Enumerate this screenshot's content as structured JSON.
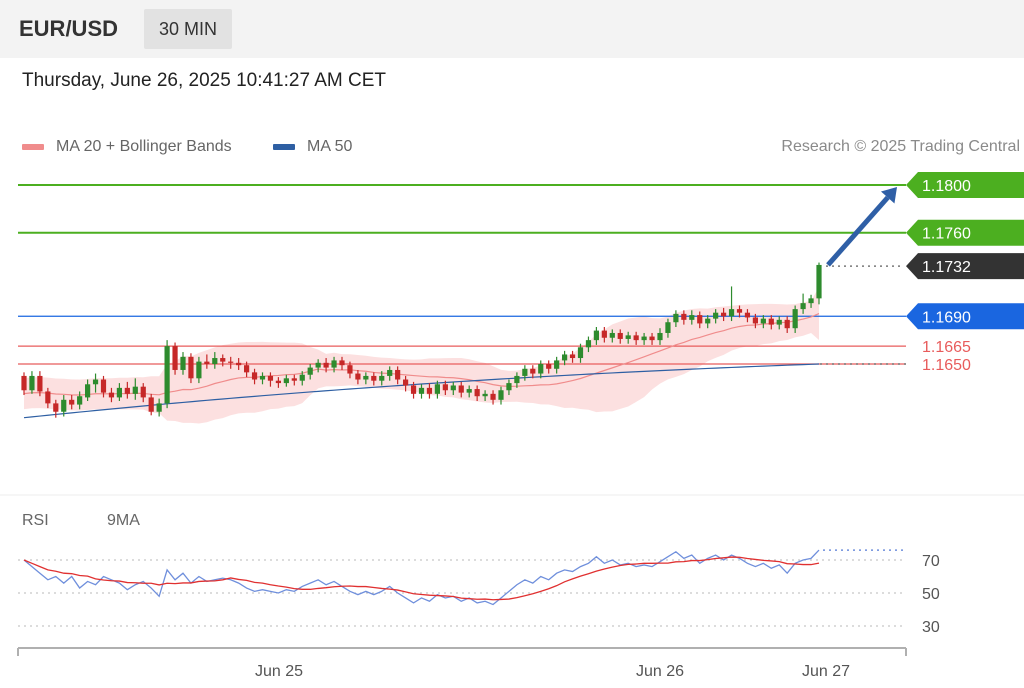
{
  "header": {
    "symbol": "EUR/USD",
    "timeframe": "30 MIN"
  },
  "timestamp": "Thursday, June 26, 2025 10:41:27 AM CET",
  "legend": {
    "ma20": {
      "label": "MA 20 + Bollinger Bands",
      "color": "#f08c8c"
    },
    "ma50": {
      "label": "MA 50",
      "color": "#2e5fa3"
    }
  },
  "copyright": "Research © 2025 Trading Central",
  "rsi_legend": {
    "rsi": {
      "label": "RSI",
      "color": "#6f8fdc"
    },
    "ma9": {
      "label": "9MA",
      "color": "#e03030"
    }
  },
  "colors": {
    "up": "#2e8b2e",
    "down": "#c62828",
    "resistance": "#4caf20",
    "pivot": "#1a66e0",
    "support": "#e85c5c",
    "current": "#333333",
    "band": "#fbd6d6",
    "arrow": "#2f5fa6"
  },
  "chart_data": [
    {
      "type": "candlestick",
      "title": "EUR/USD",
      "x_ticks": [
        "Jun 25",
        "Jun 26",
        "Jun 27"
      ],
      "levels": [
        {
          "value": 1.18,
          "label": "1.1800",
          "kind": "resistance"
        },
        {
          "value": 1.176,
          "label": "1.1760",
          "kind": "resistance"
        },
        {
          "value": 1.1732,
          "label": "1.1732",
          "kind": "current"
        },
        {
          "value": 1.169,
          "label": "1.1690",
          "kind": "pivot"
        },
        {
          "value": 1.1665,
          "label": "1.1665",
          "kind": "support"
        },
        {
          "value": 1.165,
          "label": "1.1650",
          "kind": "support"
        }
      ],
      "target_arrow": {
        "from": 1.1733,
        "to": 1.18
      },
      "candles": [
        [
          1.164,
          1.1628,
          1.1643,
          1.1624
        ],
        [
          1.1628,
          1.164,
          1.1644,
          1.1625
        ],
        [
          1.164,
          1.1627,
          1.1644,
          1.1623
        ],
        [
          1.1627,
          1.1617,
          1.163,
          1.1613
        ],
        [
          1.1617,
          1.161,
          1.162,
          1.1605
        ],
        [
          1.161,
          1.162,
          1.1624,
          1.1606
        ],
        [
          1.162,
          1.1616,
          1.1624,
          1.1612
        ],
        [
          1.1616,
          1.1623,
          1.1627,
          1.1612
        ],
        [
          1.1622,
          1.1633,
          1.1637,
          1.1619
        ],
        [
          1.1633,
          1.1637,
          1.1642,
          1.1626
        ],
        [
          1.1637,
          1.1626,
          1.164,
          1.1622
        ],
        [
          1.1626,
          1.1622,
          1.163,
          1.1618
        ],
        [
          1.1622,
          1.163,
          1.1634,
          1.1619
        ],
        [
          1.163,
          1.1625,
          1.1635,
          1.1621
        ],
        [
          1.1625,
          1.1631,
          1.1638,
          1.162
        ],
        [
          1.1631,
          1.1622,
          1.1634,
          1.1618
        ],
        [
          1.1622,
          1.161,
          1.1625,
          1.1607
        ],
        [
          1.161,
          1.1617,
          1.1621,
          1.1606
        ],
        [
          1.1617,
          1.1665,
          1.167,
          1.1613
        ],
        [
          1.1665,
          1.1645,
          1.1668,
          1.1641
        ],
        [
          1.1645,
          1.1656,
          1.166,
          1.1641
        ],
        [
          1.1656,
          1.1638,
          1.1659,
          1.1634
        ],
        [
          1.1638,
          1.1652,
          1.1656,
          1.1634
        ],
        [
          1.1652,
          1.165,
          1.1658,
          1.1646
        ],
        [
          1.165,
          1.1655,
          1.166,
          1.1646
        ],
        [
          1.1655,
          1.1652,
          1.1658,
          1.1648
        ],
        [
          1.1652,
          1.1651,
          1.1656,
          1.1646
        ],
        [
          1.1651,
          1.1649,
          1.1655,
          1.1645
        ],
        [
          1.1649,
          1.1643,
          1.1652,
          1.1639
        ],
        [
          1.1643,
          1.1637,
          1.1646,
          1.1633
        ],
        [
          1.1637,
          1.164,
          1.1643,
          1.1633
        ],
        [
          1.164,
          1.1636,
          1.1643,
          1.1631
        ],
        [
          1.1636,
          1.1634,
          1.1639,
          1.163
        ],
        [
          1.1634,
          1.1638,
          1.1641,
          1.1631
        ],
        [
          1.1638,
          1.1636,
          1.1641,
          1.1632
        ],
        [
          1.1636,
          1.1641,
          1.1644,
          1.1632
        ],
        [
          1.1641,
          1.1647,
          1.165,
          1.1637
        ],
        [
          1.1647,
          1.1651,
          1.1654,
          1.1643
        ],
        [
          1.1651,
          1.1647,
          1.1655,
          1.1643
        ],
        [
          1.1647,
          1.1653,
          1.1656,
          1.1643
        ],
        [
          1.1653,
          1.1649,
          1.1656,
          1.1645
        ],
        [
          1.1649,
          1.1642,
          1.1652,
          1.1638
        ],
        [
          1.1642,
          1.1637,
          1.1645,
          1.1633
        ],
        [
          1.1637,
          1.164,
          1.1643,
          1.1633
        ],
        [
          1.164,
          1.1636,
          1.1643,
          1.1632
        ],
        [
          1.1636,
          1.164,
          1.1644,
          1.1632
        ],
        [
          1.164,
          1.1645,
          1.1648,
          1.1636
        ],
        [
          1.1645,
          1.1637,
          1.1648,
          1.1633
        ],
        [
          1.1637,
          1.1632,
          1.164,
          1.1627
        ],
        [
          1.1632,
          1.1625,
          1.1635,
          1.1621
        ],
        [
          1.1625,
          1.163,
          1.1633,
          1.1621
        ],
        [
          1.163,
          1.1625,
          1.1634,
          1.1621
        ],
        [
          1.1625,
          1.1633,
          1.1636,
          1.1621
        ],
        [
          1.1633,
          1.1628,
          1.1636,
          1.1624
        ],
        [
          1.1628,
          1.1632,
          1.1635,
          1.1624
        ],
        [
          1.1632,
          1.1626,
          1.1635,
          1.1622
        ],
        [
          1.1626,
          1.1629,
          1.1632,
          1.1622
        ],
        [
          1.1629,
          1.1623,
          1.1632,
          1.1619
        ],
        [
          1.1623,
          1.1625,
          1.1628,
          1.1619
        ],
        [
          1.1625,
          1.162,
          1.1628,
          1.1616
        ],
        [
          1.162,
          1.1628,
          1.1631,
          1.1616
        ],
        [
          1.1628,
          1.1634,
          1.1637,
          1.1624
        ],
        [
          1.1634,
          1.164,
          1.1643,
          1.163
        ],
        [
          1.164,
          1.1646,
          1.1649,
          1.1636
        ],
        [
          1.1646,
          1.1642,
          1.1649,
          1.1638
        ],
        [
          1.1642,
          1.165,
          1.1653,
          1.1638
        ],
        [
          1.165,
          1.1646,
          1.1653,
          1.1642
        ],
        [
          1.1646,
          1.1653,
          1.1656,
          1.1642
        ],
        [
          1.1653,
          1.1658,
          1.1661,
          1.1649
        ],
        [
          1.1658,
          1.1655,
          1.1661,
          1.1651
        ],
        [
          1.1655,
          1.1664,
          1.1667,
          1.1651
        ],
        [
          1.1664,
          1.167,
          1.1673,
          1.166
        ],
        [
          1.167,
          1.1678,
          1.1681,
          1.1666
        ],
        [
          1.1678,
          1.1672,
          1.1681,
          1.1668
        ],
        [
          1.1672,
          1.1676,
          1.1679,
          1.1668
        ],
        [
          1.1676,
          1.1671,
          1.1679,
          1.1667
        ],
        [
          1.1671,
          1.1674,
          1.1677,
          1.1667
        ],
        [
          1.1674,
          1.167,
          1.1677,
          1.1666
        ],
        [
          1.167,
          1.1673,
          1.1676,
          1.1666
        ],
        [
          1.1673,
          1.167,
          1.1676,
          1.1666
        ],
        [
          1.167,
          1.1676,
          1.168,
          1.1666
        ],
        [
          1.1676,
          1.1685,
          1.1688,
          1.1672
        ],
        [
          1.1685,
          1.1692,
          1.1695,
          1.1681
        ],
        [
          1.1692,
          1.1687,
          1.1695,
          1.1683
        ],
        [
          1.1687,
          1.1691,
          1.1695,
          1.1683
        ],
        [
          1.1691,
          1.1684,
          1.1694,
          1.168
        ],
        [
          1.1684,
          1.1688,
          1.1691,
          1.168
        ],
        [
          1.1688,
          1.1693,
          1.1696,
          1.1684
        ],
        [
          1.1693,
          1.169,
          1.1697,
          1.1686
        ],
        [
          1.169,
          1.1696,
          1.1715,
          1.1686
        ],
        [
          1.1696,
          1.1693,
          1.1699,
          1.1689
        ],
        [
          1.1693,
          1.1689,
          1.1696,
          1.1685
        ],
        [
          1.1689,
          1.1684,
          1.1692,
          1.168
        ],
        [
          1.1684,
          1.1688,
          1.1691,
          1.168
        ],
        [
          1.1688,
          1.1683,
          1.1691,
          1.1679
        ],
        [
          1.1683,
          1.1687,
          1.169,
          1.1679
        ],
        [
          1.1687,
          1.168,
          1.169,
          1.1676
        ],
        [
          1.168,
          1.1696,
          1.1699,
          1.1676
        ],
        [
          1.1696,
          1.1701,
          1.1709,
          1.1692
        ],
        [
          1.1701,
          1.1705,
          1.1708,
          1.1697
        ],
        [
          1.1705,
          1.1733,
          1.1735,
          1.17
        ]
      ],
      "ma20_start": 1.1625,
      "bb_width_start": 0.0013,
      "ma50": {
        "start": 1.1605,
        "end": 1.165
      }
    },
    {
      "type": "line",
      "title": "RSI",
      "ylim": [
        20,
        85
      ],
      "y_ticks": [
        70,
        50,
        30
      ],
      "series": [
        {
          "name": "RSI",
          "values": [
            70,
            66,
            62,
            58,
            60,
            56,
            60,
            53,
            57,
            55,
            60,
            58,
            56,
            52,
            55,
            57,
            53,
            48,
            64,
            58,
            62,
            56,
            60,
            57,
            58,
            59,
            58,
            56,
            53,
            51,
            52,
            51,
            50,
            52,
            51,
            54,
            56,
            58,
            55,
            57,
            54,
            51,
            49,
            51,
            49,
            51,
            54,
            50,
            47,
            44,
            47,
            45,
            49,
            47,
            48,
            45,
            47,
            44,
            45,
            43,
            47,
            51,
            55,
            58,
            56,
            60,
            58,
            62,
            64,
            63,
            66,
            68,
            72,
            68,
            70,
            67,
            68,
            66,
            67,
            66,
            69,
            72,
            75,
            71,
            73,
            68,
            71,
            73,
            70,
            73,
            71,
            68,
            66,
            68,
            65,
            67,
            62,
            68,
            70,
            71,
            76
          ]
        },
        {
          "name": "9MA"
        }
      ]
    }
  ]
}
